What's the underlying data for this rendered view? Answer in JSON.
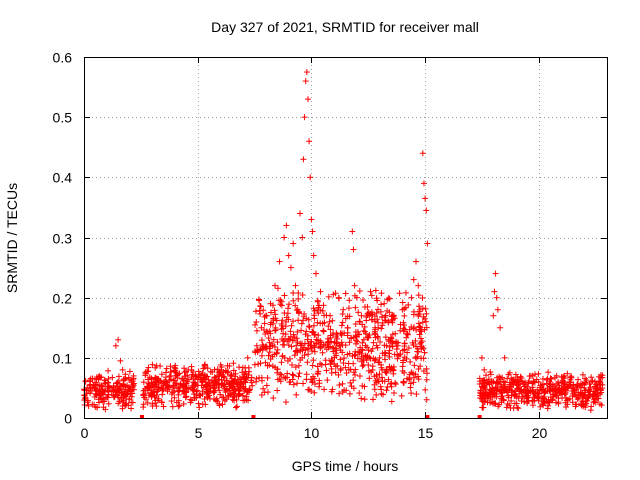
{
  "chart_data": {
    "type": "scatter",
    "title": "Day 327 of 2021, SRMTID for receiver mall",
    "xlabel": "GPS time / hours",
    "ylabel": "SRMTID / TECUs",
    "xlim": [
      0,
      23
    ],
    "ylim": [
      0,
      0.6
    ],
    "xticks": [
      0,
      5,
      10,
      15,
      20
    ],
    "xtick_labels": [
      "0",
      "5",
      "10",
      "15",
      "20"
    ],
    "yticks": [
      0,
      0.1,
      0.2,
      0.3,
      0.4,
      0.5,
      0.6
    ],
    "ytick_labels": [
      "0",
      "0.1",
      "0.2",
      "0.3",
      "0.4",
      "0.5",
      "0.6"
    ],
    "grid": true,
    "marker": "+",
    "color": "#ff0000",
    "data_gaps_marked_at_zero": [
      2.55,
      7.45,
      15.1,
      17.4
    ],
    "series": [
      {
        "name": "SRMTID",
        "segments": [
          {
            "x_range": [
              0.0,
              2.2
            ],
            "median": 0.045,
            "spread": 0.035
          },
          {
            "x_range": [
              2.6,
              7.4
            ],
            "median": 0.055,
            "spread": 0.04
          },
          {
            "x_range": [
              7.5,
              15.1
            ],
            "median": 0.12,
            "spread": 0.1
          },
          {
            "x_range": [
              17.4,
              22.8
            ],
            "median": 0.045,
            "spread": 0.035
          }
        ],
        "x": [
          1.4,
          1.5,
          1.6,
          1.7,
          7.2,
          7.6,
          7.8,
          8.0,
          8.2,
          8.4,
          8.6,
          8.8,
          8.9,
          9.0,
          9.1,
          9.2,
          9.3,
          9.4,
          9.5,
          9.6,
          9.65,
          9.7,
          9.75,
          9.8,
          9.85,
          9.9,
          9.95,
          10.0,
          10.05,
          10.1,
          10.2,
          10.4,
          10.6,
          10.8,
          11.0,
          11.2,
          11.4,
          11.6,
          11.8,
          11.85,
          11.9,
          12.0,
          12.2,
          12.4,
          12.6,
          12.8,
          13.0,
          13.2,
          13.4,
          13.6,
          13.8,
          14.0,
          14.2,
          14.4,
          14.5,
          14.6,
          14.7,
          14.8,
          14.9,
          14.95,
          15.0,
          15.05,
          15.1,
          17.5,
          17.6,
          17.8,
          18.0,
          18.05,
          18.1,
          18.15,
          18.2,
          18.3,
          18.5,
          19.0,
          19.5,
          20.0,
          20.5,
          21.0,
          21.5,
          22.0,
          22.5,
          22.8
        ],
        "y": [
          0.12,
          0.13,
          0.095,
          0.08,
          0.1,
          0.12,
          0.15,
          0.17,
          0.19,
          0.22,
          0.26,
          0.3,
          0.32,
          0.27,
          0.25,
          0.29,
          0.22,
          0.18,
          0.34,
          0.3,
          0.43,
          0.5,
          0.56,
          0.575,
          0.53,
          0.46,
          0.4,
          0.33,
          0.31,
          0.27,
          0.24,
          0.21,
          0.12,
          0.16,
          0.09,
          0.2,
          0.18,
          0.15,
          0.31,
          0.28,
          0.22,
          0.2,
          0.17,
          0.14,
          0.21,
          0.15,
          0.1,
          0.19,
          0.13,
          0.08,
          0.12,
          0.18,
          0.14,
          0.2,
          0.23,
          0.26,
          0.22,
          0.15,
          0.44,
          0.39,
          0.365,
          0.345,
          0.29,
          0.1,
          0.08,
          0.06,
          0.17,
          0.21,
          0.24,
          0.2,
          0.18,
          0.15,
          0.1,
          0.06,
          0.05,
          0.04,
          0.05,
          0.045,
          0.04,
          0.05,
          0.045,
          0.055
        ]
      }
    ]
  }
}
